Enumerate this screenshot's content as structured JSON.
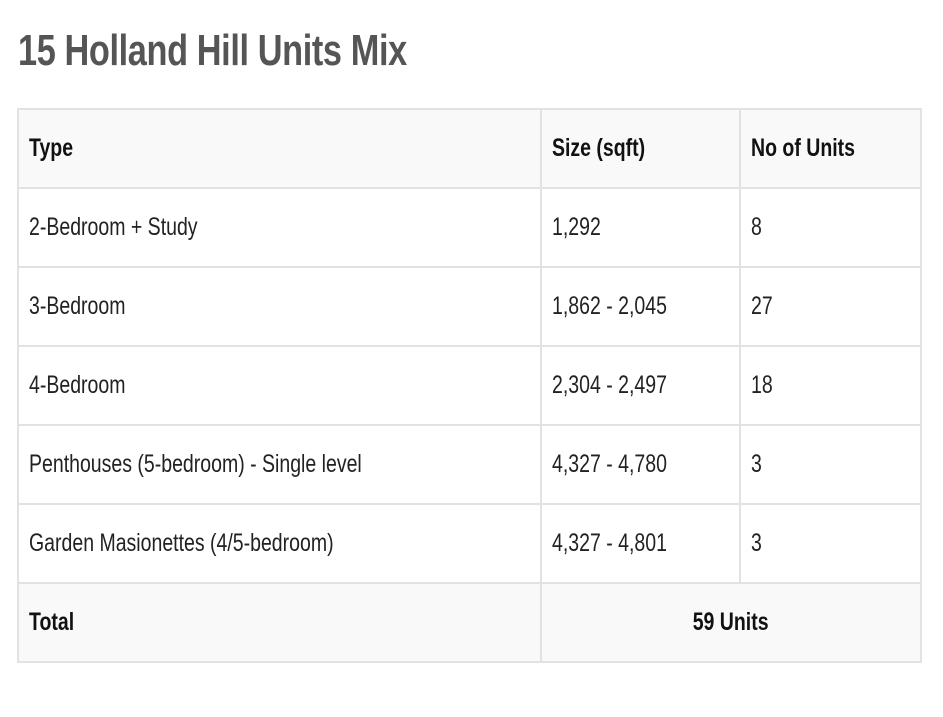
{
  "title": "15 Holland Hill Units Mix",
  "table": {
    "headers": [
      "Type",
      "Size (sqft)",
      "No of Units"
    ],
    "rows": [
      [
        "2-Bedroom + Study",
        "1,292",
        "8"
      ],
      [
        "3-Bedroom",
        "1,862 - 2,045",
        "27"
      ],
      [
        "4-Bedroom",
        "2,304 - 2,497",
        "18"
      ],
      [
        "Penthouses (5-bedroom) - Single level",
        "4,327 - 4,780",
        "3"
      ],
      [
        "Garden Masionettes (4/5-bedroom)",
        "4,327 - 4,801",
        "3"
      ]
    ],
    "total": {
      "label": "Total",
      "value": "59 Units"
    }
  }
}
